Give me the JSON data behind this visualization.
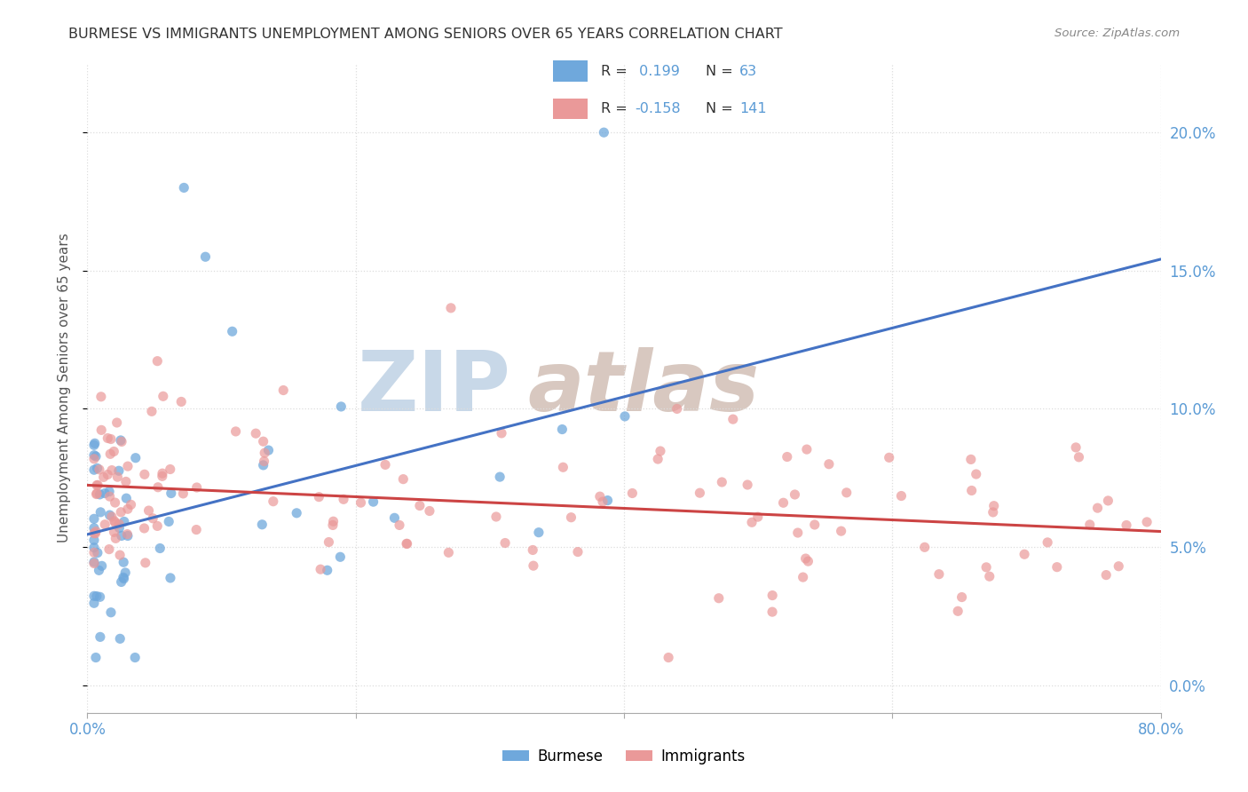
{
  "title": "BURMESE VS IMMIGRANTS UNEMPLOYMENT AMONG SENIORS OVER 65 YEARS CORRELATION CHART",
  "source": "Source: ZipAtlas.com",
  "ylabel": "Unemployment Among Seniors over 65 years",
  "yticks": [
    0.0,
    0.05,
    0.1,
    0.15,
    0.2
  ],
  "ytick_labels": [
    "0.0%",
    "5.0%",
    "10.0%",
    "15.0%",
    "20.0%"
  ],
  "xlim": [
    0.0,
    0.8
  ],
  "ylim": [
    -0.01,
    0.225
  ],
  "burmese_R": 0.199,
  "burmese_N": 63,
  "immigrants_R": -0.158,
  "immigrants_N": 141,
  "burmese_color": "#6fa8dc",
  "immigrants_color": "#ea9999",
  "burmese_line_color": "#4472c4",
  "immigrants_line_color": "#cc4444",
  "watermark_zip_color": "#c8d8e8",
  "watermark_atlas_color": "#d8c8c0",
  "watermark_text1": "ZIP",
  "watermark_text2": "atlas",
  "tick_color": "#5b9bd5",
  "axis_color": "#aaaaaa",
  "grid_color": "#dddddd"
}
